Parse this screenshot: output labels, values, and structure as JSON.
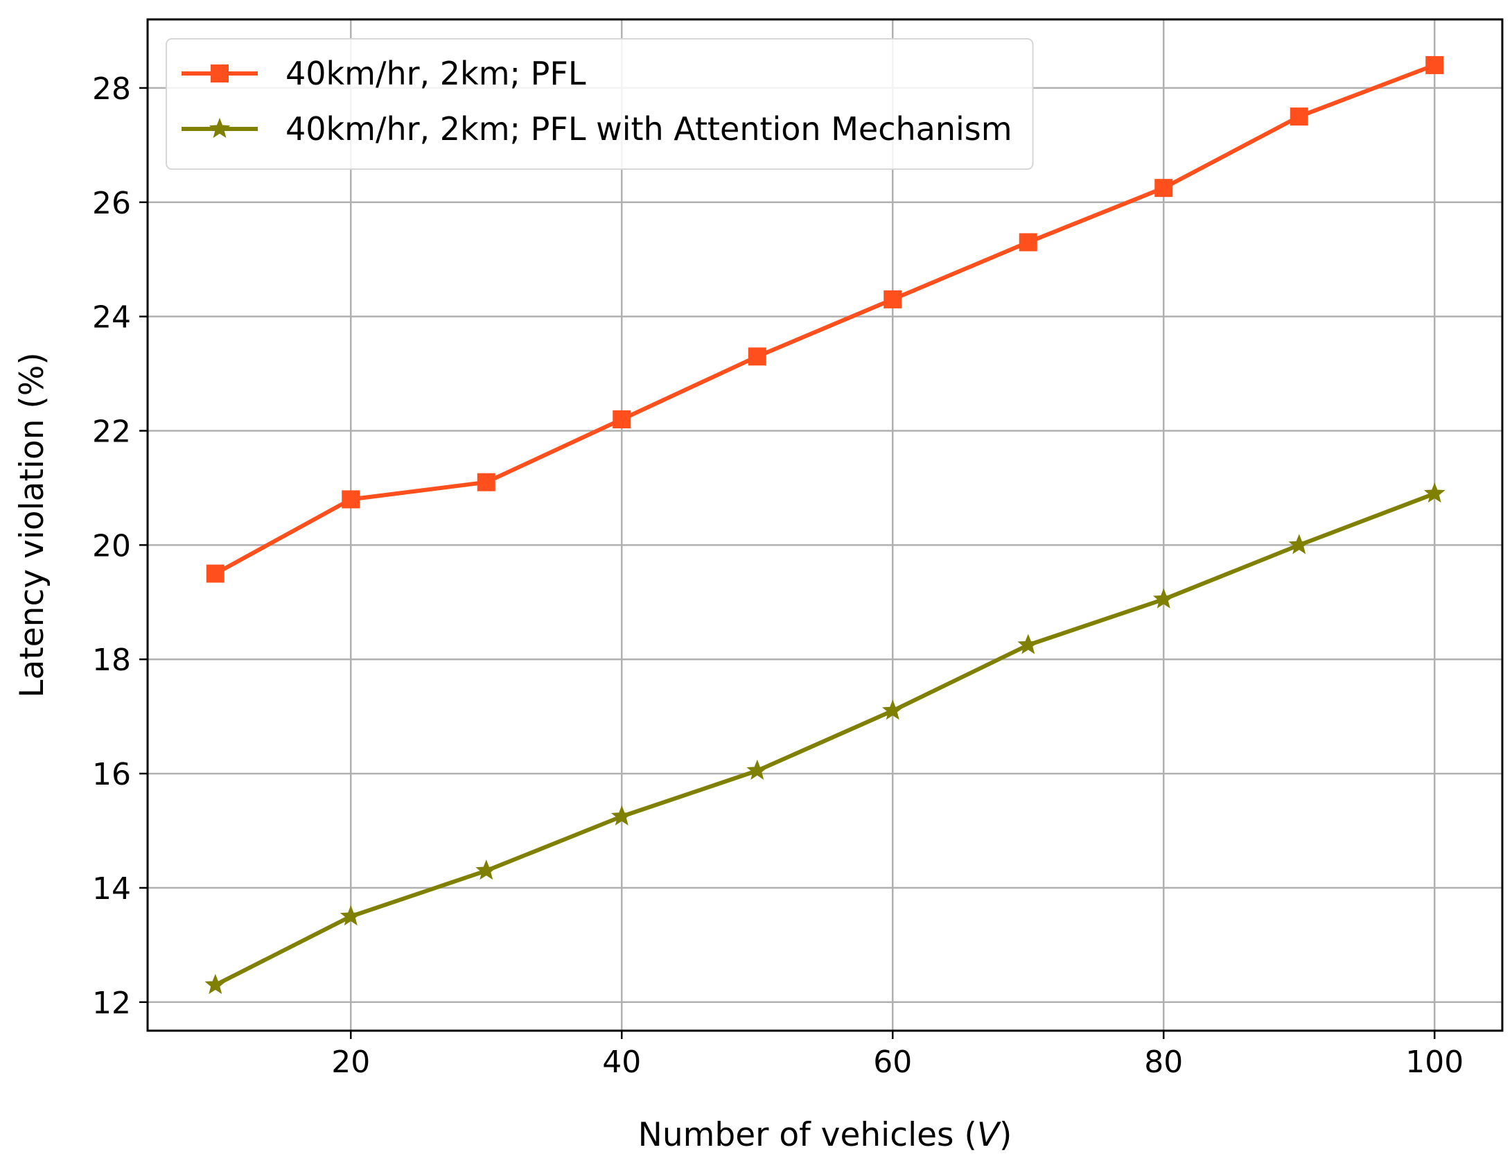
{
  "chart_data": {
    "type": "line",
    "title": "",
    "xlabel": "Number of vehicles (",
    "xlabel_var": "V",
    "xlabel_suffix": ")",
    "ylabel": "Latency violation (%)",
    "xlim": [
      5,
      105
    ],
    "ylim": [
      11.5,
      29.2
    ],
    "xticks": [
      20,
      40,
      60,
      80,
      100
    ],
    "yticks": [
      12,
      14,
      16,
      18,
      20,
      22,
      24,
      26,
      28
    ],
    "grid": true,
    "legend_position": "upper-left",
    "x": [
      10,
      20,
      30,
      40,
      50,
      60,
      70,
      80,
      90,
      100
    ],
    "series": [
      {
        "name": "40km/hr, 2km; PFL",
        "color": "#ff4f1c",
        "marker": "square",
        "values": [
          19.5,
          20.8,
          21.1,
          22.2,
          23.3,
          24.3,
          25.3,
          26.25,
          27.5,
          28.4
        ]
      },
      {
        "name": "40km/hr, 2km; PFL with Attention Mechanism",
        "color": "#7f8000",
        "marker": "star",
        "values": [
          12.3,
          13.5,
          14.3,
          15.25,
          16.05,
          17.1,
          18.25,
          19.05,
          20.0,
          20.9
        ]
      }
    ]
  }
}
